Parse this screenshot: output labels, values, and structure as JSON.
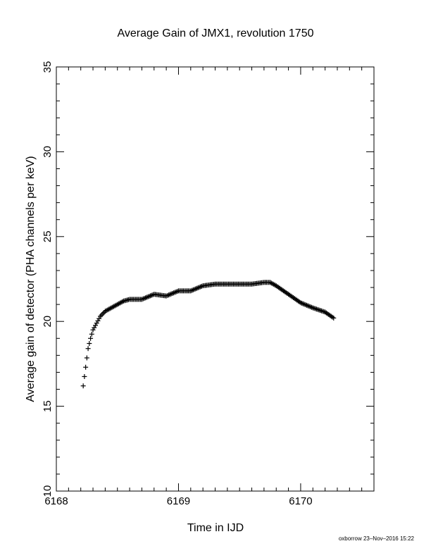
{
  "chart_data": {
    "type": "scatter",
    "title": "Average Gain of JMX1, revolution 1750",
    "xlabel": "Time in IJD",
    "ylabel": "Average gain of detector (PHA channels per keV)",
    "xlim": [
      6168,
      6170.6
    ],
    "ylim": [
      10,
      35
    ],
    "xticks": [
      6168,
      6169,
      6170
    ],
    "yticks": [
      10,
      15,
      20,
      25,
      30,
      35
    ],
    "x_minor_step": 0.1,
    "y_minor_step": 1,
    "marker": "+",
    "color": "#000000",
    "grid": false,
    "anchor_points": {
      "x": [
        6168.22,
        6168.24,
        6168.26,
        6168.28,
        6168.3,
        6168.33,
        6168.36,
        6168.4,
        6168.45,
        6168.5,
        6168.55,
        6168.6,
        6168.7,
        6168.8,
        6168.9,
        6169.0,
        6169.1,
        6169.2,
        6169.3,
        6169.4,
        6169.5,
        6169.6,
        6169.7,
        6169.75,
        6169.8,
        6169.9,
        6170.0,
        6170.1,
        6170.2,
        6170.27
      ],
      "y": [
        16.2,
        17.3,
        18.4,
        19.0,
        19.5,
        19.9,
        20.3,
        20.6,
        20.8,
        21.0,
        21.2,
        21.3,
        21.3,
        21.6,
        21.5,
        21.8,
        21.8,
        22.1,
        22.2,
        22.2,
        22.2,
        22.2,
        22.3,
        22.3,
        22.1,
        21.6,
        21.1,
        20.8,
        20.55,
        20.2
      ]
    },
    "point_step": 0.01
  },
  "footer": "oxborrow 23–Nov–2016 15:22"
}
